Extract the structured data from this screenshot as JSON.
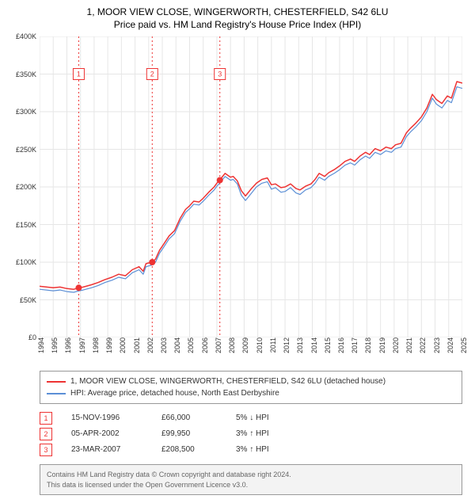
{
  "title_line1": "1, MOOR VIEW CLOSE, WINGERWORTH, CHESTERFIELD, S42 6LU",
  "title_line2": "Price paid vs. HM Land Registry's House Price Index (HPI)",
  "chart": {
    "type": "line",
    "background_color": "#ffffff",
    "grid_color": "#e6e6e6",
    "grid_color_major": "#cccccc",
    "axis_color": "#888888",
    "plot_border_color": "#bbbbbb",
    "y_axis": {
      "min": 0,
      "max": 400,
      "tick_step": 50,
      "tick_format_prefix": "£",
      "tick_format_suffix": "K",
      "ticks": [
        0,
        50,
        100,
        150,
        200,
        250,
        300,
        350,
        400
      ]
    },
    "x_axis": {
      "min": 1994,
      "max": 2025,
      "ticks": [
        1994,
        1995,
        1996,
        1997,
        1998,
        1999,
        2000,
        2001,
        2002,
        2003,
        2004,
        2005,
        2006,
        2007,
        2008,
        2009,
        2010,
        2011,
        2012,
        2013,
        2014,
        2015,
        2016,
        2017,
        2018,
        2019,
        2020,
        2021,
        2022,
        2023,
        2024,
        2025
      ]
    },
    "series": [
      {
        "id": "property",
        "label": "1, MOOR VIEW CLOSE, WINGERWORTH, CHESTERFIELD, S42 6LU (detached house)",
        "color": "#ee3333",
        "line_width": 1.5,
        "points": [
          [
            1994.0,
            68
          ],
          [
            1995.0,
            66
          ],
          [
            1995.5,
            67
          ],
          [
            1996.0,
            65
          ],
          [
            1996.5,
            64
          ],
          [
            1996.9,
            66
          ],
          [
            1997.2,
            67
          ],
          [
            1997.8,
            70
          ],
          [
            1998.3,
            73
          ],
          [
            1998.8,
            77
          ],
          [
            1999.3,
            80
          ],
          [
            1999.8,
            84
          ],
          [
            2000.3,
            82
          ],
          [
            2000.8,
            90
          ],
          [
            2001.3,
            94
          ],
          [
            2001.6,
            88
          ],
          [
            2001.8,
            98
          ],
          [
            2002.2,
            100
          ],
          [
            2002.5,
            104
          ],
          [
            2002.8,
            116
          ],
          [
            2003.1,
            124
          ],
          [
            2003.5,
            135
          ],
          [
            2003.9,
            142
          ],
          [
            2004.3,
            158
          ],
          [
            2004.7,
            170
          ],
          [
            2005.0,
            175
          ],
          [
            2005.3,
            181
          ],
          [
            2005.7,
            180
          ],
          [
            2006.0,
            185
          ],
          [
            2006.4,
            193
          ],
          [
            2006.8,
            200
          ],
          [
            2007.0,
            205
          ],
          [
            2007.2,
            209
          ],
          [
            2007.6,
            218
          ],
          [
            2008.0,
            213
          ],
          [
            2008.2,
            214
          ],
          [
            2008.5,
            208
          ],
          [
            2008.8,
            195
          ],
          [
            2009.1,
            188
          ],
          [
            2009.5,
            197
          ],
          [
            2009.9,
            205
          ],
          [
            2010.3,
            210
          ],
          [
            2010.7,
            212
          ],
          [
            2011.0,
            203
          ],
          [
            2011.3,
            204
          ],
          [
            2011.7,
            199
          ],
          [
            2012.0,
            200
          ],
          [
            2012.4,
            204
          ],
          [
            2012.8,
            198
          ],
          [
            2013.1,
            196
          ],
          [
            2013.5,
            201
          ],
          [
            2013.9,
            204
          ],
          [
            2014.2,
            210
          ],
          [
            2014.5,
            218
          ],
          [
            2014.9,
            214
          ],
          [
            2015.2,
            219
          ],
          [
            2015.6,
            223
          ],
          [
            2016.0,
            228
          ],
          [
            2016.4,
            234
          ],
          [
            2016.8,
            237
          ],
          [
            2017.1,
            234
          ],
          [
            2017.5,
            241
          ],
          [
            2017.9,
            246
          ],
          [
            2018.2,
            243
          ],
          [
            2018.6,
            251
          ],
          [
            2019.0,
            248
          ],
          [
            2019.4,
            253
          ],
          [
            2019.8,
            251
          ],
          [
            2020.1,
            256
          ],
          [
            2020.5,
            258
          ],
          [
            2020.9,
            272
          ],
          [
            2021.2,
            278
          ],
          [
            2021.6,
            285
          ],
          [
            2022.0,
            293
          ],
          [
            2022.4,
            305
          ],
          [
            2022.8,
            323
          ],
          [
            2023.1,
            316
          ],
          [
            2023.5,
            311
          ],
          [
            2023.9,
            321
          ],
          [
            2024.2,
            318
          ],
          [
            2024.6,
            340
          ],
          [
            2025.0,
            338
          ]
        ]
      },
      {
        "id": "hpi",
        "label": "HPI: Average price, detached house, North East Derbyshire",
        "color": "#5b8fd6",
        "line_width": 1.2,
        "points": [
          [
            1994.0,
            64
          ],
          [
            1995.0,
            62
          ],
          [
            1995.5,
            63
          ],
          [
            1996.0,
            61
          ],
          [
            1996.5,
            60
          ],
          [
            1996.9,
            62
          ],
          [
            1997.2,
            63
          ],
          [
            1997.8,
            66
          ],
          [
            1998.3,
            69
          ],
          [
            1998.8,
            73
          ],
          [
            1999.3,
            76
          ],
          [
            1999.8,
            80
          ],
          [
            2000.3,
            78
          ],
          [
            2000.8,
            86
          ],
          [
            2001.3,
            90
          ],
          [
            2001.6,
            84
          ],
          [
            2001.8,
            94
          ],
          [
            2002.2,
            96
          ],
          [
            2002.5,
            100
          ],
          [
            2002.8,
            112
          ],
          [
            2003.1,
            120
          ],
          [
            2003.5,
            131
          ],
          [
            2003.9,
            138
          ],
          [
            2004.3,
            154
          ],
          [
            2004.7,
            166
          ],
          [
            2005.0,
            171
          ],
          [
            2005.3,
            177
          ],
          [
            2005.7,
            176
          ],
          [
            2006.0,
            181
          ],
          [
            2006.4,
            189
          ],
          [
            2006.8,
            196
          ],
          [
            2007.0,
            201
          ],
          [
            2007.2,
            205
          ],
          [
            2007.6,
            214
          ],
          [
            2008.0,
            209
          ],
          [
            2008.2,
            210
          ],
          [
            2008.5,
            204
          ],
          [
            2008.8,
            189
          ],
          [
            2009.1,
            182
          ],
          [
            2009.5,
            191
          ],
          [
            2009.9,
            200
          ],
          [
            2010.3,
            205
          ],
          [
            2010.7,
            207
          ],
          [
            2011.0,
            197
          ],
          [
            2011.3,
            199
          ],
          [
            2011.7,
            193
          ],
          [
            2012.0,
            194
          ],
          [
            2012.4,
            199
          ],
          [
            2012.8,
            192
          ],
          [
            2013.1,
            190
          ],
          [
            2013.5,
            196
          ],
          [
            2013.9,
            199
          ],
          [
            2014.2,
            205
          ],
          [
            2014.5,
            213
          ],
          [
            2014.9,
            209
          ],
          [
            2015.2,
            214
          ],
          [
            2015.6,
            218
          ],
          [
            2016.0,
            223
          ],
          [
            2016.4,
            229
          ],
          [
            2016.8,
            232
          ],
          [
            2017.1,
            229
          ],
          [
            2017.5,
            236
          ],
          [
            2017.9,
            241
          ],
          [
            2018.2,
            238
          ],
          [
            2018.6,
            246
          ],
          [
            2019.0,
            243
          ],
          [
            2019.4,
            248
          ],
          [
            2019.8,
            246
          ],
          [
            2020.1,
            251
          ],
          [
            2020.5,
            253
          ],
          [
            2020.9,
            267
          ],
          [
            2021.2,
            273
          ],
          [
            2021.6,
            280
          ],
          [
            2022.0,
            288
          ],
          [
            2022.4,
            300
          ],
          [
            2022.8,
            318
          ],
          [
            2023.1,
            310
          ],
          [
            2023.5,
            305
          ],
          [
            2023.9,
            315
          ],
          [
            2024.2,
            312
          ],
          [
            2024.6,
            333
          ],
          [
            2025.0,
            331
          ]
        ]
      }
    ],
    "transaction_markers": [
      {
        "n": 1,
        "x_year": 1996.87,
        "y_value": 66
      },
      {
        "n": 2,
        "x_year": 2002.26,
        "y_value": 100
      },
      {
        "n": 3,
        "x_year": 2007.22,
        "y_value": 209
      }
    ],
    "marker_line_color": "#ee3333",
    "marker_line_dash": "2,3",
    "marker_dot_color": "#ee3333",
    "marker_dot_radius": 4,
    "marker_badge_border": "#ee3333",
    "marker_badge_text_color": "#ee3333",
    "marker_badge_bg": "#ffffff",
    "marker_badge_size": 14,
    "marker_badge_y_value": 350
  },
  "legend": [
    {
      "color": "#ee3333",
      "label": "1, MOOR VIEW CLOSE, WINGERWORTH, CHESTERFIELD, S42 6LU (detached house)"
    },
    {
      "color": "#5b8fd6",
      "label": "HPI: Average price, detached house, North East Derbyshire"
    }
  ],
  "transactions": [
    {
      "n": "1",
      "date": "15-NOV-1996",
      "price": "£66,000",
      "hpi": "5% ↓ HPI"
    },
    {
      "n": "2",
      "date": "05-APR-2002",
      "price": "£99,950",
      "hpi": "3% ↑ HPI"
    },
    {
      "n": "3",
      "date": "23-MAR-2007",
      "price": "£208,500",
      "hpi": "3% ↑ HPI"
    }
  ],
  "footer_line1": "Contains HM Land Registry data © Crown copyright and database right 2024.",
  "footer_line2": "This data is licensed under the Open Government Licence v3.0."
}
